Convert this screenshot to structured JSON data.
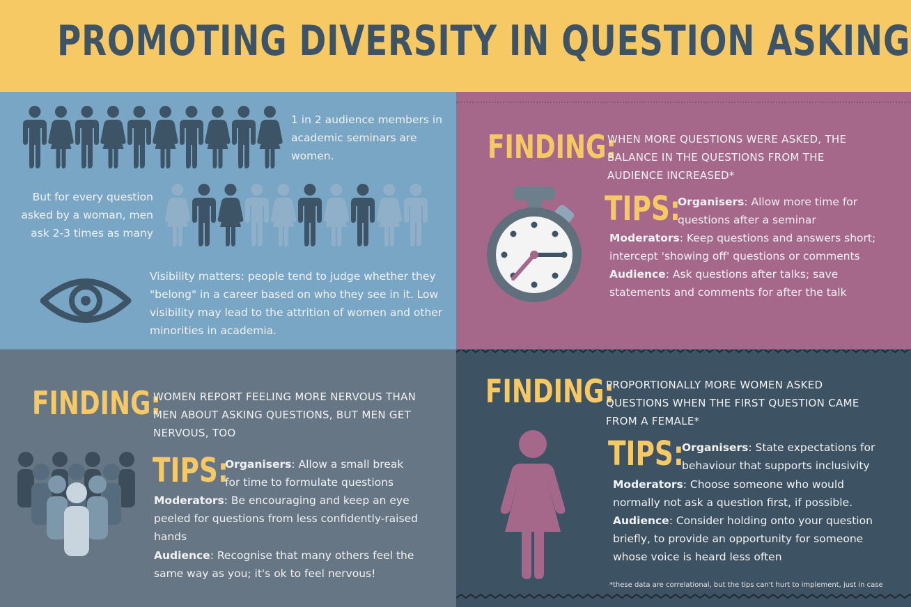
{
  "title": "PROMOTING DIVERSITY  IN QUESTION ASKING",
  "colors": {
    "header_bg": "#f6c964",
    "title": "#3e5466",
    "accent": "#f6c964",
    "blue_panel": "#7aa6c6",
    "mauve_panel": "#a5688b",
    "grey_panel": "#667684",
    "navy_panel": "#3d5263",
    "figure_dark": "#3d5466",
    "figure_light": "#8fb0c8",
    "female_pink": "#a5688b"
  },
  "panel1": {
    "stat1": "1 in 2 audience members in academic seminars are women.",
    "stat2": "But for every question asked by a woman, men ask 2-3 times as many",
    "visibility": "Visibility matters: people tend to judge whether they \"belong\" in a career based on who they see in it. Low visibility may lead to the attrition of women and other minorities in academia.",
    "icons": [
      "person-icons-row",
      "eye-icon"
    ]
  },
  "panel2": {
    "finding_label": "FINDING:",
    "finding_text": "WHEN MORE QUESTIONS WERE ASKED, THE BALANCE IN THE QUESTIONS FROM THE AUDIENCE INCREASED*",
    "tips_label": "TIPS:",
    "tips": [
      {
        "role": "Organisers",
        "text": ": Allow more time for questions after a seminar"
      },
      {
        "role": "Moderators",
        "text": ": Keep questions and answers short; intercept 'showing off' questions or comments"
      },
      {
        "role": "Audience",
        "text": ": Ask questions after talks; save statements and comments for after the talk"
      }
    ],
    "icon": "stopwatch-icon"
  },
  "panel3": {
    "finding_label": "FINDING:",
    "finding_text": "WOMEN REPORT FEELING MORE NERVOUS THAN MEN ABOUT ASKING QUESTIONS, BUT MEN GET NERVOUS, TOO",
    "tips_label": "TIPS:",
    "tips": [
      {
        "role": "Organisers",
        "text": ": Allow a small break for time to formulate questions"
      },
      {
        "role": "Moderators",
        "text": ": Be encouraging and keep an eye peeled for questions from less confidently-raised hands"
      },
      {
        "role": "Audience",
        "text": ": Recognise that many others feel the same way as you; it's ok to feel nervous!"
      }
    ],
    "icon": "crowd-icon"
  },
  "panel4": {
    "finding_label": "FINDING:",
    "finding_text": "PROPORTIONALLY MORE WOMEN ASKED QUESTIONS WHEN THE FIRST QUESTION CAME FROM A FEMALE*",
    "tips_label": "TIPS:",
    "tips": [
      {
        "role": "Organisers",
        "text": ": State expectations for behaviour that supports inclusivity"
      },
      {
        "role": "Moderators",
        "text": ": Choose someone who would normally not ask a question first, if possible."
      },
      {
        "role": "Audience",
        "text": ": Consider holding onto your question briefly, to provide an opportunity for someone whose voice is heard less often"
      }
    ],
    "footnote": "*these data are correlational, but the tips can't hurt to implement, just in case",
    "icon": "woman-icon"
  }
}
